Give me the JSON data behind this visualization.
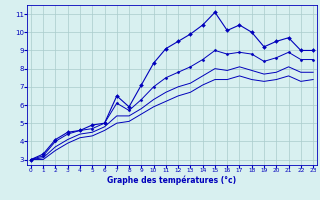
{
  "title": "",
  "xlabel": "Graphe des températures (°c)",
  "bg_color": "#d8f0f0",
  "grid_color": "#aacccc",
  "line_color": "#0000bb",
  "x_ticks": [
    0,
    1,
    2,
    3,
    4,
    5,
    6,
    7,
    8,
    9,
    10,
    11,
    12,
    13,
    14,
    15,
    16,
    17,
    18,
    19,
    20,
    21,
    22,
    23
  ],
  "y_ticks": [
    3,
    4,
    5,
    6,
    7,
    8,
    9,
    10,
    11
  ],
  "ylim": [
    2.7,
    11.5
  ],
  "xlim": [
    -0.3,
    23.3
  ],
  "series": [
    {
      "x": [
        0,
        1,
        2,
        3,
        4,
        5,
        6,
        7,
        8,
        9,
        10,
        11,
        12,
        13,
        14,
        15,
        16,
        17,
        18,
        19,
        20,
        21,
        22,
        23
      ],
      "y": [
        3.0,
        3.3,
        4.1,
        4.5,
        4.6,
        4.9,
        5.0,
        6.5,
        5.9,
        7.1,
        8.3,
        9.1,
        9.5,
        9.9,
        10.4,
        11.1,
        10.1,
        10.4,
        10.0,
        9.2,
        9.5,
        9.7,
        9.0,
        9.0
      ],
      "marker": "D",
      "markersize": 2.0,
      "linewidth": 0.8,
      "has_marker": true
    },
    {
      "x": [
        0,
        1,
        2,
        3,
        4,
        5,
        6,
        7,
        8,
        9,
        10,
        11,
        12,
        13,
        14,
        15,
        16,
        17,
        18,
        19,
        20,
        21,
        22,
        23
      ],
      "y": [
        3.0,
        3.2,
        4.0,
        4.4,
        4.6,
        4.7,
        5.0,
        6.1,
        5.7,
        6.3,
        7.0,
        7.5,
        7.8,
        8.1,
        8.5,
        9.0,
        8.8,
        8.9,
        8.8,
        8.4,
        8.6,
        8.9,
        8.5,
        8.5
      ],
      "marker": "D",
      "markersize": 1.5,
      "linewidth": 0.7,
      "has_marker": true
    },
    {
      "x": [
        0,
        1,
        2,
        3,
        4,
        5,
        6,
        7,
        8,
        9,
        10,
        11,
        12,
        13,
        14,
        15,
        16,
        17,
        18,
        19,
        20,
        21,
        22,
        23
      ],
      "y": [
        3.0,
        3.1,
        3.7,
        4.1,
        4.4,
        4.5,
        4.8,
        5.4,
        5.4,
        5.8,
        6.3,
        6.7,
        7.0,
        7.2,
        7.6,
        8.0,
        7.9,
        8.1,
        7.9,
        7.7,
        7.8,
        8.1,
        7.8,
        7.8
      ],
      "marker": null,
      "markersize": 0,
      "linewidth": 0.7,
      "has_marker": false
    },
    {
      "x": [
        0,
        1,
        2,
        3,
        4,
        5,
        6,
        7,
        8,
        9,
        10,
        11,
        12,
        13,
        14,
        15,
        16,
        17,
        18,
        19,
        20,
        21,
        22,
        23
      ],
      "y": [
        3.0,
        3.0,
        3.5,
        3.9,
        4.2,
        4.3,
        4.6,
        5.0,
        5.1,
        5.5,
        5.9,
        6.2,
        6.5,
        6.7,
        7.1,
        7.4,
        7.4,
        7.6,
        7.4,
        7.3,
        7.4,
        7.6,
        7.3,
        7.4
      ],
      "marker": null,
      "markersize": 0,
      "linewidth": 0.7,
      "has_marker": false
    }
  ]
}
